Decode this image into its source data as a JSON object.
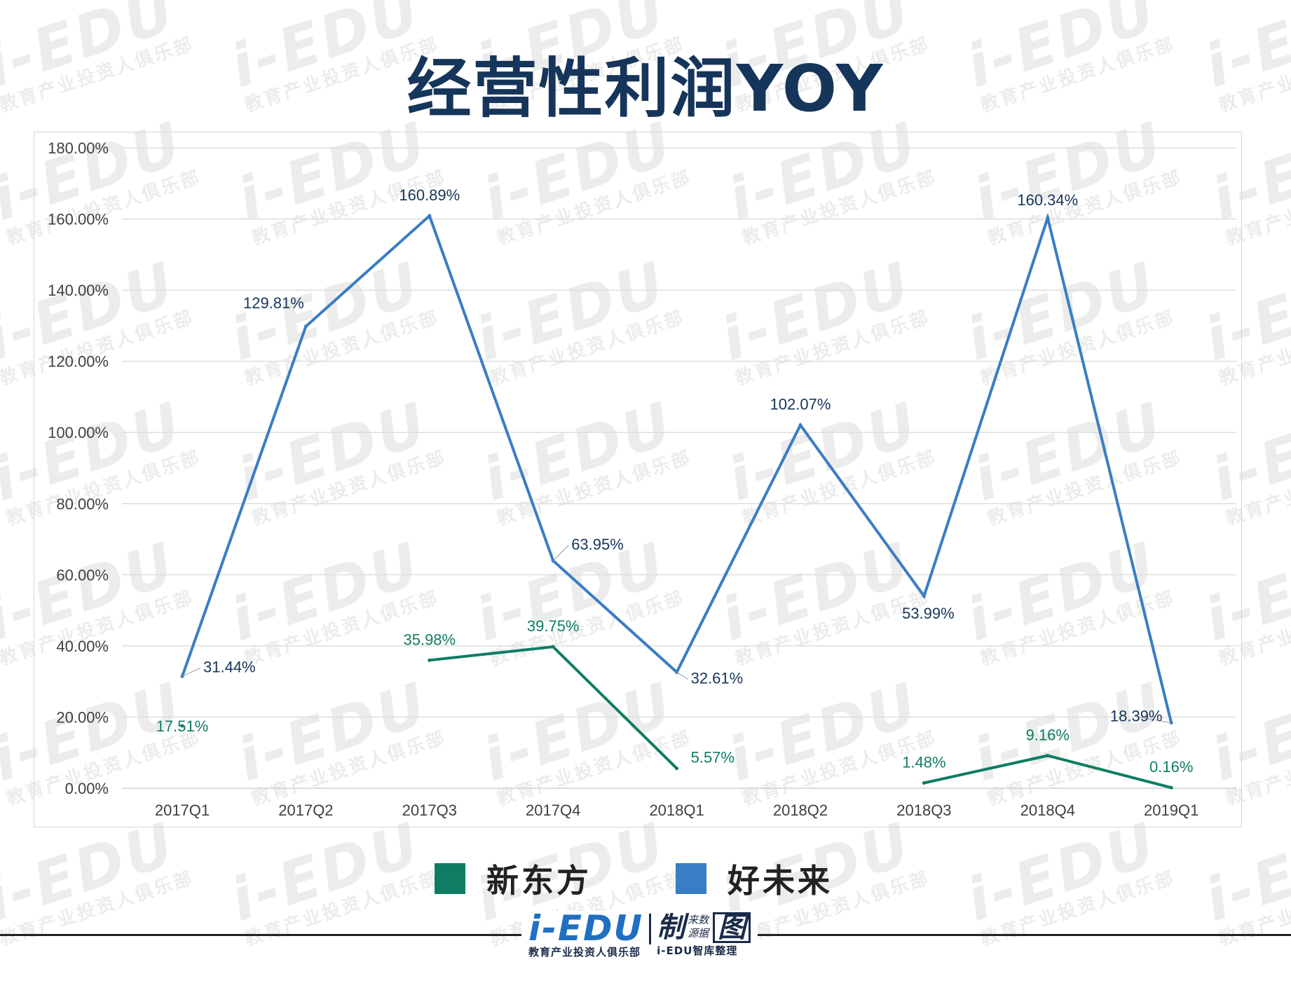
{
  "title": "经营性利润YOY",
  "watermark": {
    "main": "i-EDU",
    "sub": "教育产业投资人俱乐部"
  },
  "legend": [
    {
      "label": "新东方",
      "color": "#0e7d63"
    },
    {
      "label": "好未来",
      "color": "#3a7dc4"
    }
  ],
  "footer": {
    "logo_main": "i-EDU",
    "logo_sub": "教育产业投资人俱乐部",
    "zhi": "制",
    "source_top": "来数",
    "source_bottom": "源据",
    "tu": "图",
    "right_sub": "i-EDU智库整理"
  },
  "chart_data": {
    "type": "line",
    "title": "经营性利润YOY",
    "categories": [
      "2017Q1",
      "2017Q2",
      "2017Q3",
      "2017Q4",
      "2018Q1",
      "2018Q2",
      "2018Q3",
      "2018Q4",
      "2019Q1"
    ],
    "ylim": [
      0,
      180
    ],
    "yticks": [
      "0.00%",
      "20.00%",
      "40.00%",
      "60.00%",
      "80.00%",
      "100.00%",
      "120.00%",
      "140.00%",
      "160.00%",
      "180.00%"
    ],
    "grid": true,
    "legend_position": "bottom",
    "series": [
      {
        "name": "新东方",
        "color": "#0e7d63",
        "values": [
          17.51,
          null,
          35.98,
          39.75,
          5.57,
          null,
          1.48,
          9.16,
          0.16
        ],
        "labels": [
          "17.51%",
          "",
          "35.98%",
          "39.75%",
          "5.57%",
          "",
          "1.48%",
          "9.16%",
          "0.16%"
        ]
      },
      {
        "name": "好未来",
        "color": "#3a7dc4",
        "values": [
          31.44,
          129.81,
          160.89,
          63.95,
          32.61,
          102.07,
          53.99,
          160.34,
          18.39
        ],
        "labels": [
          "31.44%",
          "129.81%",
          "160.89%",
          "63.95%",
          "32.61%",
          "102.07%",
          "53.99%",
          "160.34%",
          "18.39%"
        ]
      }
    ]
  }
}
